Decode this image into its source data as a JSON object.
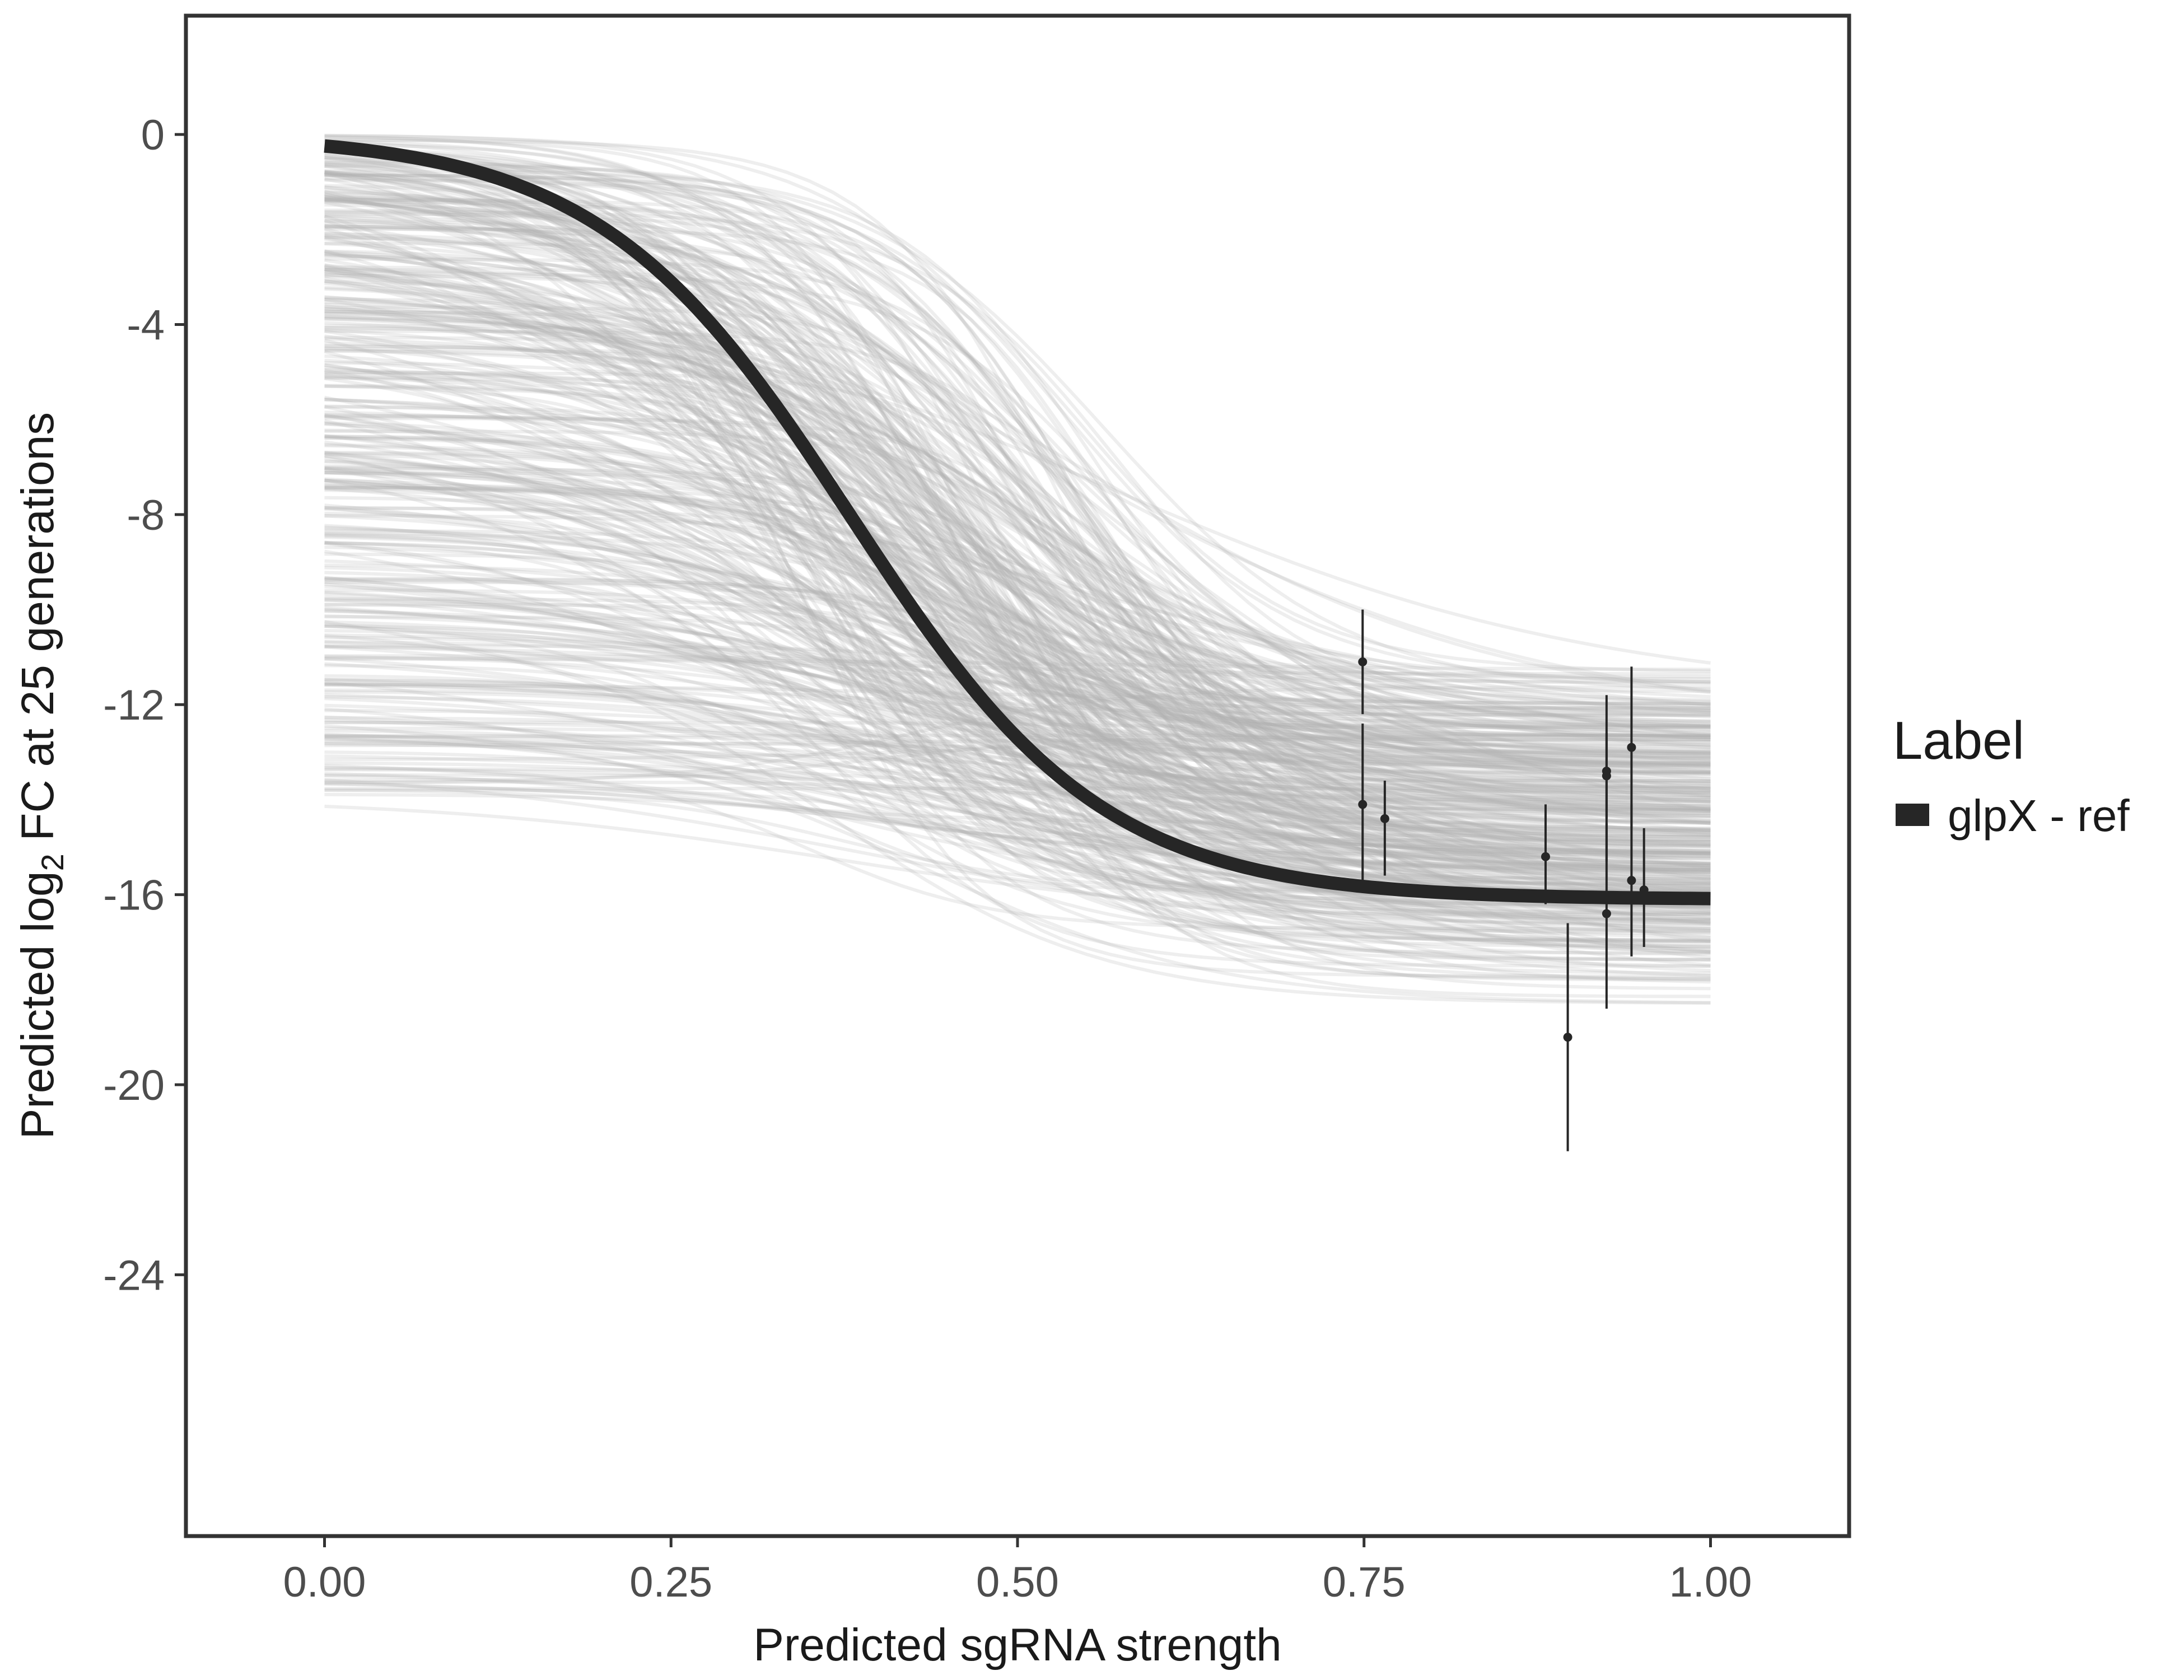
{
  "chart_data": {
    "type": "line",
    "xlabel": "Predicted sgRNA strength",
    "ylabel_prefix": "Predicted  log",
    "ylabel_subscript": "2",
    "ylabel_suffix": " FC at 25 generations",
    "xlim": [
      -0.1,
      1.1
    ],
    "ylim": [
      -29.5,
      2.5
    ],
    "x_ticks": [
      0,
      0.25,
      0.5,
      0.75,
      1.0
    ],
    "x_tick_labels": [
      "0.00",
      "0.25",
      "0.50",
      "0.75",
      "1.00"
    ],
    "y_ticks": [
      0,
      -4,
      -8,
      -12,
      -16,
      -20,
      -24
    ],
    "y_tick_labels": [
      "0",
      "-4",
      "-8",
      "-12",
      "-16",
      "-20",
      "-24"
    ],
    "grid": false,
    "legend": {
      "title": "Label",
      "position": "right",
      "entries": [
        {
          "label": "glpX - ref",
          "color": "#262626"
        }
      ]
    },
    "main_curve": {
      "name": "glpX - ref",
      "color": "#262626",
      "model": "logistic",
      "bottom": -16.1,
      "top": 0,
      "midpoint": 0.38,
      "steepness": 11
    },
    "posterior_draws": {
      "color": "#b3b3b3",
      "count": 400,
      "description_free": true
    },
    "observations": [
      {
        "x": 0.749,
        "y": -11.1,
        "ylo": -12.2,
        "yhi": -10.0
      },
      {
        "x": 0.749,
        "y": -14.1,
        "ylo": -15.7,
        "yhi": -12.4
      },
      {
        "x": 0.765,
        "y": -14.4,
        "ylo": -15.6,
        "yhi": -13.6
      },
      {
        "x": 0.881,
        "y": -15.2,
        "ylo": -16.2,
        "yhi": -14.1
      },
      {
        "x": 0.897,
        "y": -19.0,
        "ylo": -21.4,
        "yhi": -16.6
      },
      {
        "x": 0.925,
        "y": -13.4,
        "ylo": -14.4,
        "yhi": -11.8
      },
      {
        "x": 0.925,
        "y": -13.5,
        "ylo": -15.3,
        "yhi": -12.6
      },
      {
        "x": 0.925,
        "y": -16.4,
        "ylo": -18.4,
        "yhi": -14.5
      },
      {
        "x": 0.943,
        "y": -12.9,
        "ylo": -14.6,
        "yhi": -11.2
      },
      {
        "x": 0.943,
        "y": -15.7,
        "ylo": -17.3,
        "yhi": -14.1
      },
      {
        "x": 0.952,
        "y": -15.9,
        "ylo": -17.1,
        "yhi": -14.6
      }
    ]
  }
}
